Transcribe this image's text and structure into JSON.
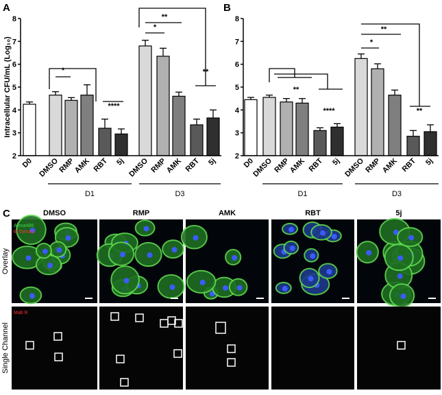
{
  "chart_data": [
    {
      "type": "bar",
      "panel": "A",
      "y_label": "Intracellular CFU/mL (Log₁₀)",
      "categories": [
        "D0",
        "DMSO",
        "RMP",
        "AMK",
        "RBT",
        "5j",
        "DMSO",
        "RMP",
        "AMK",
        "RBT",
        "5j"
      ],
      "values": [
        4.25,
        4.65,
        4.42,
        4.65,
        3.2,
        2.95,
        6.8,
        6.35,
        4.6,
        3.35,
        3.65
      ],
      "errors": [
        0.1,
        0.15,
        0.12,
        0.45,
        0.4,
        0.22,
        0.25,
        0.35,
        0.18,
        0.25,
        0.35
      ],
      "colors": [
        "#ffffff",
        "#d9d9d9",
        "#b0b0b0",
        "#7f7f7f",
        "#595959",
        "#2f2f2f",
        "#d9d9d9",
        "#b0b0b0",
        "#7f7f7f",
        "#595959",
        "#2f2f2f"
      ],
      "groups": [
        "D1",
        "D3"
      ],
      "annotations": [
        "*",
        "****",
        "*",
        "**",
        "**"
      ],
      "ylim": [
        2,
        8
      ],
      "yticks": [
        2,
        3,
        4,
        5,
        6,
        7,
        8
      ]
    },
    {
      "type": "bar",
      "panel": "B",
      "categories": [
        "D0",
        "DMSO",
        "RMP",
        "AMK",
        "RBT",
        "5j",
        "DMSO",
        "RMP",
        "AMK",
        "RBT",
        "5j"
      ],
      "values": [
        4.45,
        4.55,
        4.35,
        4.3,
        3.1,
        3.25,
        6.25,
        5.8,
        4.65,
        2.85,
        3.05
      ],
      "errors": [
        0.1,
        0.1,
        0.15,
        0.2,
        0.12,
        0.15,
        0.2,
        0.22,
        0.22,
        0.25,
        0.3
      ],
      "colors": [
        "#ffffff",
        "#d9d9d9",
        "#b0b0b0",
        "#7f7f7f",
        "#595959",
        "#2f2f2f",
        "#d9d9d9",
        "#b0b0b0",
        "#7f7f7f",
        "#595959",
        "#2f2f2f"
      ],
      "groups": [
        "D1",
        "D3"
      ],
      "annotations": [
        "**",
        "****",
        "*",
        "**",
        "**"
      ],
      "ylim": [
        2,
        8
      ],
      "yticks": [
        2,
        3,
        4,
        5,
        6,
        7,
        8
      ]
    }
  ],
  "panel_c": {
    "label": "C",
    "columns": [
      "DMSO",
      "RMP",
      "AMK",
      "RBT",
      "5j"
    ],
    "rows": [
      "Overlay",
      "Single Channel"
    ],
    "overlay_legend": [
      "Alexa488",
      "td Tomato"
    ],
    "single_legend": "Mab R"
  }
}
